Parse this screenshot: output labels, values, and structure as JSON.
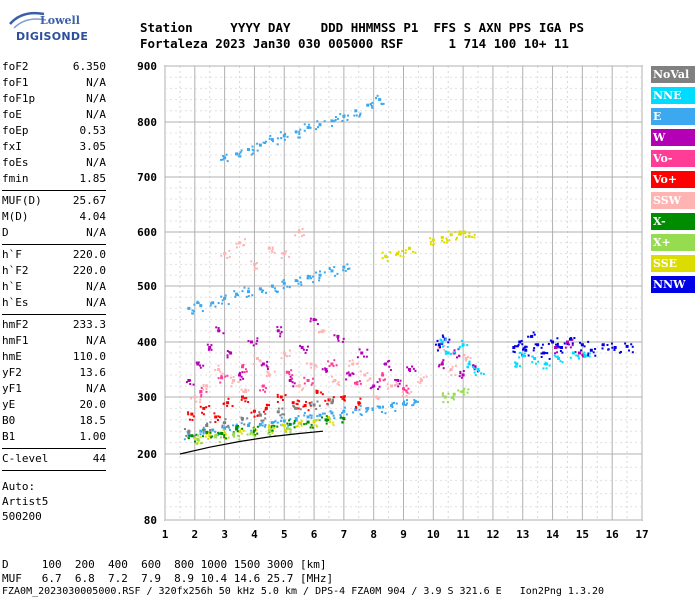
{
  "logo": {
    "line1": "Lowell",
    "line2": "DIGISONDE"
  },
  "header": {
    "line1": "Station     YYYY DAY    DDD HHMMSS P1  FFS S AXN PPS IGA PS",
    "line2": "Fortaleza 2023 Jan30 030 005000 RSF      1 714 100 10+ 11"
  },
  "params_group1": [
    {
      "name": "foF2",
      "value": "6.350"
    },
    {
      "name": "foF1",
      "value": "N/A"
    },
    {
      "name": "foF1p",
      "value": "N/A"
    },
    {
      "name": "foE",
      "value": "N/A"
    },
    {
      "name": "foEp",
      "value": "0.53"
    },
    {
      "name": "fxI",
      "value": "3.05"
    },
    {
      "name": "foEs",
      "value": "N/A"
    },
    {
      "name": "fmin",
      "value": "1.85"
    }
  ],
  "params_group2": [
    {
      "name": "MUF(D)",
      "value": "25.67"
    },
    {
      "name": "M(D)",
      "value": "4.04"
    },
    {
      "name": "D",
      "value": "N/A"
    }
  ],
  "params_group3": [
    {
      "name": "h`F",
      "value": "220.0"
    },
    {
      "name": "h`F2",
      "value": "220.0"
    },
    {
      "name": "h`E",
      "value": "N/A"
    },
    {
      "name": "h`Es",
      "value": "N/A"
    }
  ],
  "params_group4": [
    {
      "name": "hmF2",
      "value": "233.3"
    },
    {
      "name": "hmF1",
      "value": "N/A"
    },
    {
      "name": "hmE",
      "value": "110.0"
    },
    {
      "name": "yF2",
      "value": "13.6"
    },
    {
      "name": "yF1",
      "value": "N/A"
    },
    {
      "name": "yE",
      "value": "20.0"
    },
    {
      "name": "B0",
      "value": "18.5"
    },
    {
      "name": "B1",
      "value": "1.00"
    }
  ],
  "c_level": {
    "name": "C-level",
    "value": "44"
  },
  "auto": {
    "line1": "Auto:",
    "line2": "Artist5",
    "line3": "500200"
  },
  "legend": [
    {
      "label": "NoVal",
      "color": "#808080"
    },
    {
      "label": "NNE",
      "color": "#00dcff"
    },
    {
      "label": "E",
      "color": "#3ca8f0"
    },
    {
      "label": "W",
      "color": "#b400b4"
    },
    {
      "label": "Vo-",
      "color": "#ff3c96"
    },
    {
      "label": "Vo+",
      "color": "#ff0000"
    },
    {
      "label": "SSW",
      "color": "#ffb4b4"
    },
    {
      "label": "X-",
      "color": "#008c00"
    },
    {
      "label": "X+",
      "color": "#96dc50"
    },
    {
      "label": "SSE",
      "color": "#dcdc00"
    },
    {
      "label": "NNW",
      "color": "#0000e6"
    }
  ],
  "bottom": {
    "d_row": "D     100  200  400  600  800 1000 1500 3000 [km]",
    "muf_row": "MUF   6.7  6.8  7.2  7.9  8.9 10.4 14.6 25.7 [MHz]",
    "footer": "FZA0M_2023030005000.RSF / 320fx256h 50 kHz 5.0 km / DPS-4 FZA0M 904 / 3.9 S 321.6 E   Ion2Png 1.3.20"
  },
  "chart_data": {
    "type": "scatter",
    "title": "",
    "xlabel": "",
    "ylabel": "",
    "xlim": [
      1,
      17
    ],
    "ylim": [
      80,
      900
    ],
    "x_ticks": [
      1,
      2,
      3,
      4,
      5,
      6,
      7,
      8,
      9,
      10,
      11,
      12,
      13,
      14,
      15,
      16,
      17
    ],
    "y_ticks": [
      80,
      200,
      300,
      400,
      500,
      600,
      700,
      800,
      900
    ],
    "grid": true,
    "series": [
      {
        "color": "#3ca8f0",
        "points": [
          [
            1.8,
            235
          ],
          [
            2.2,
            240
          ],
          [
            2.6,
            242
          ],
          [
            3.0,
            245
          ],
          [
            3.4,
            248
          ],
          [
            3.8,
            250
          ],
          [
            4.2,
            252
          ],
          [
            4.6,
            255
          ],
          [
            5.0,
            258
          ],
          [
            5.4,
            262
          ],
          [
            5.8,
            265
          ],
          [
            6.2,
            268
          ],
          [
            6.6,
            272
          ],
          [
            7.0,
            275
          ],
          [
            7.4,
            278
          ],
          [
            7.8,
            280
          ],
          [
            8.2,
            282
          ],
          [
            8.6,
            285
          ],
          [
            9.0,
            288
          ],
          [
            9.4,
            292
          ],
          [
            1.8,
            460
          ],
          [
            2.2,
            465
          ],
          [
            2.6,
            470
          ],
          [
            3.0,
            478
          ],
          [
            3.4,
            485
          ],
          [
            3.8,
            490
          ],
          [
            4.2,
            495
          ],
          [
            4.6,
            500
          ],
          [
            5.0,
            505
          ],
          [
            5.4,
            510
          ],
          [
            5.8,
            515
          ],
          [
            6.2,
            520
          ],
          [
            6.6,
            528
          ],
          [
            7.0,
            535
          ],
          [
            3.0,
            735
          ],
          [
            3.4,
            742
          ],
          [
            3.8,
            750
          ],
          [
            4.2,
            758
          ],
          [
            4.6,
            768
          ],
          [
            5.0,
            775
          ],
          [
            5.4,
            782
          ],
          [
            5.8,
            790
          ],
          [
            6.2,
            795
          ],
          [
            6.6,
            802
          ],
          [
            7.0,
            810
          ],
          [
            7.4,
            820
          ],
          [
            7.8,
            830
          ],
          [
            8.2,
            840
          ]
        ]
      },
      {
        "color": "#b400b4",
        "points": [
          [
            1.8,
            330
          ],
          [
            2.1,
            360
          ],
          [
            2.5,
            390
          ],
          [
            2.8,
            420
          ],
          [
            3.2,
            380
          ],
          [
            3.5,
            340
          ],
          [
            3.9,
            400
          ],
          [
            4.3,
            360
          ],
          [
            4.8,
            420
          ],
          [
            5.2,
            330
          ],
          [
            5.6,
            390
          ],
          [
            6.0,
            440
          ],
          [
            6.4,
            350
          ],
          [
            6.8,
            410
          ],
          [
            7.2,
            340
          ],
          [
            7.6,
            380
          ],
          [
            8.0,
            320
          ],
          [
            8.4,
            360
          ],
          [
            8.8,
            330
          ],
          [
            9.2,
            350
          ],
          [
            10.3,
            360
          ],
          [
            10.7,
            380
          ],
          [
            11.0,
            340
          ],
          [
            11.4,
            355
          ],
          [
            14.1,
            390
          ],
          [
            14.5,
            400
          ],
          [
            14.9,
            380
          ]
        ]
      },
      {
        "color": "#ffb4b4",
        "points": [
          [
            2.0,
            300
          ],
          [
            2.4,
            320
          ],
          [
            2.8,
            350
          ],
          [
            3.3,
            330
          ],
          [
            3.7,
            310
          ],
          [
            4.1,
            370
          ],
          [
            4.5,
            340
          ],
          [
            5.0,
            380
          ],
          [
            5.5,
            320
          ],
          [
            5.9,
            360
          ],
          [
            6.3,
            420
          ],
          [
            6.7,
            330
          ],
          [
            7.3,
            360
          ],
          [
            7.7,
            340
          ],
          [
            8.1,
            300
          ],
          [
            8.6,
            320
          ],
          [
            9.1,
            310
          ],
          [
            9.6,
            330
          ],
          [
            10.2,
            390
          ],
          [
            10.6,
            350
          ],
          [
            11.1,
            370
          ],
          [
            3.0,
            560
          ],
          [
            3.5,
            580
          ],
          [
            4.0,
            540
          ],
          [
            4.5,
            570
          ],
          [
            5.0,
            560
          ],
          [
            5.5,
            600
          ]
        ]
      },
      {
        "color": "#ff0000",
        "points": [
          [
            1.9,
            270
          ],
          [
            2.3,
            280
          ],
          [
            2.7,
            265
          ],
          [
            3.1,
            290
          ],
          [
            3.6,
            300
          ],
          [
            4.0,
            275
          ],
          [
            4.4,
            280
          ],
          [
            4.9,
            300
          ],
          [
            5.3,
            290
          ],
          [
            5.7,
            285
          ],
          [
            6.1,
            310
          ],
          [
            6.5,
            295
          ],
          [
            7.0,
            300
          ],
          [
            7.5,
            290
          ]
        ]
      },
      {
        "color": "#ff3c96",
        "points": [
          [
            2.2,
            310
          ],
          [
            2.9,
            335
          ],
          [
            3.6,
            355
          ],
          [
            4.3,
            320
          ],
          [
            5.1,
            345
          ],
          [
            5.8,
            330
          ],
          [
            6.6,
            360
          ],
          [
            7.4,
            325
          ],
          [
            8.3,
            340
          ],
          [
            9.0,
            315
          ]
        ]
      },
      {
        "color": "#0000e6",
        "points": [
          [
            12.7,
            390
          ],
          [
            12.9,
            400
          ],
          [
            13.1,
            385
          ],
          [
            13.3,
            410
          ],
          [
            13.5,
            395
          ],
          [
            13.7,
            380
          ],
          [
            14.0,
            400
          ],
          [
            14.3,
            390
          ],
          [
            14.6,
            405
          ],
          [
            15.0,
            395
          ],
          [
            15.3,
            385
          ],
          [
            15.7,
            395
          ],
          [
            16.1,
            390
          ],
          [
            16.5,
            392
          ],
          [
            10.2,
            395
          ],
          [
            10.4,
            405
          ]
        ]
      },
      {
        "color": "#00dcff",
        "points": [
          [
            12.8,
            360
          ],
          [
            13.0,
            375
          ],
          [
            13.4,
            370
          ],
          [
            13.8,
            360
          ],
          [
            14.2,
            370
          ],
          [
            14.7,
            380
          ],
          [
            15.1,
            375
          ],
          [
            10.3,
            400
          ],
          [
            10.5,
            380
          ],
          [
            11.0,
            395
          ],
          [
            11.2,
            360
          ],
          [
            11.5,
            350
          ]
        ]
      },
      {
        "color": "#dcdc00",
        "points": [
          [
            2.0,
            228
          ],
          [
            2.5,
            232
          ],
          [
            3.0,
            236
          ],
          [
            3.5,
            240
          ],
          [
            4.0,
            243
          ],
          [
            4.5,
            247
          ],
          [
            5.0,
            250
          ],
          [
            5.5,
            254
          ],
          [
            6.0,
            257
          ],
          [
            6.5,
            260
          ],
          [
            10.0,
            585
          ],
          [
            10.3,
            590
          ],
          [
            10.6,
            595
          ],
          [
            10.9,
            600
          ],
          [
            11.2,
            592
          ],
          [
            8.4,
            555
          ],
          [
            8.8,
            560
          ],
          [
            9.2,
            570
          ]
        ]
      },
      {
        "color": "#008c00",
        "points": [
          [
            1.9,
            232
          ],
          [
            2.4,
            238
          ],
          [
            2.9,
            236
          ],
          [
            3.4,
            244
          ],
          [
            4.0,
            242
          ],
          [
            4.6,
            248
          ],
          [
            5.2,
            252
          ],
          [
            5.8,
            256
          ],
          [
            6.4,
            260
          ],
          [
            7.0,
            262
          ]
        ]
      },
      {
        "color": "#96dc50",
        "points": [
          [
            2.1,
            226
          ],
          [
            2.7,
            230
          ],
          [
            3.3,
            234
          ],
          [
            3.9,
            238
          ],
          [
            4.5,
            241
          ],
          [
            5.1,
            245
          ],
          [
            10.4,
            300
          ],
          [
            10.7,
            305
          ],
          [
            11.0,
            310
          ]
        ]
      },
      {
        "color": "#808080",
        "points": [
          [
            1.8,
            240
          ],
          [
            2.4,
            250
          ],
          [
            3.0,
            255
          ],
          [
            3.6,
            262
          ],
          [
            4.2,
            268
          ],
          [
            4.8,
            274
          ],
          [
            5.4,
            280
          ],
          [
            6.0,
            286
          ],
          [
            6.6,
            290
          ]
        ]
      }
    ]
  }
}
